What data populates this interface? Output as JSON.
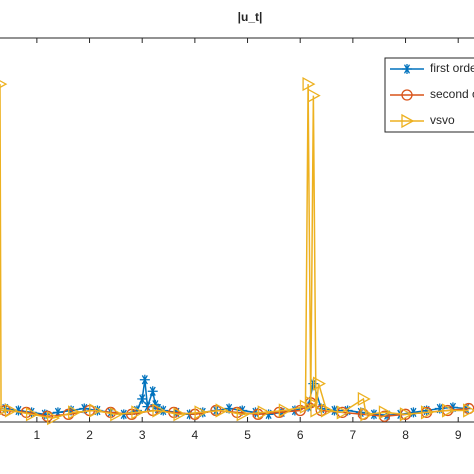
{
  "chart_data": {
    "type": "line",
    "title": "|u_t|",
    "xlim": [
      0.3,
      9.3
    ],
    "ylim": [
      0,
      1
    ],
    "xticks": [
      1,
      2,
      3,
      4,
      5,
      6,
      7,
      8,
      9
    ],
    "legend": "top-right",
    "series": [
      {
        "name": "first orde",
        "color": "#0072bd",
        "marker": "asterisk",
        "x": [
          0.4,
          0.65,
          0.9,
          1.15,
          1.4,
          1.65,
          1.9,
          2.15,
          2.4,
          2.65,
          2.9,
          3.0,
          3.05,
          3.1,
          3.2,
          3.25,
          3.3,
          3.4,
          3.65,
          3.9,
          4.15,
          4.4,
          4.65,
          4.9,
          5.15,
          5.4,
          5.65,
          5.9,
          6.15,
          6.25,
          6.4,
          6.65,
          6.9,
          7.15,
          7.4,
          7.65,
          7.9,
          8.15,
          8.4,
          8.65,
          8.9,
          9.15
        ],
        "values": [
          0.035,
          0.03,
          0.025,
          0.02,
          0.025,
          0.03,
          0.035,
          0.03,
          0.025,
          0.02,
          0.03,
          0.06,
          0.11,
          0.04,
          0.08,
          0.045,
          0.035,
          0.03,
          0.025,
          0.02,
          0.025,
          0.03,
          0.035,
          0.03,
          0.025,
          0.02,
          0.025,
          0.03,
          0.04,
          0.1,
          0.035,
          0.03,
          0.03,
          0.025,
          0.02,
          0.018,
          0.02,
          0.025,
          0.03,
          0.035,
          0.038,
          0.035
        ]
      },
      {
        "name": "second o",
        "color": "#d95319",
        "marker": "circle",
        "x": [
          0.4,
          0.8,
          1.2,
          1.6,
          2.0,
          2.4,
          2.8,
          3.2,
          3.6,
          4.0,
          4.4,
          4.8,
          5.2,
          5.6,
          6.0,
          6.2,
          6.4,
          6.8,
          7.2,
          7.6,
          8.0,
          8.4,
          8.8,
          9.2
        ],
        "values": [
          0.03,
          0.025,
          0.015,
          0.02,
          0.03,
          0.025,
          0.02,
          0.03,
          0.025,
          0.02,
          0.03,
          0.025,
          0.02,
          0.025,
          0.03,
          0.05,
          0.03,
          0.025,
          0.02,
          0.015,
          0.02,
          0.025,
          0.03,
          0.035
        ]
      },
      {
        "name": "vsvo",
        "color": "#edb120",
        "marker": "triangle-right",
        "x": [
          0.3,
          0.32,
          0.5,
          0.9,
          1.3,
          1.7,
          2.1,
          2.5,
          2.9,
          3.3,
          3.7,
          4.1,
          4.5,
          4.9,
          5.3,
          5.7,
          6.1,
          6.15,
          6.2,
          6.25,
          6.3,
          6.35,
          6.5,
          6.8,
          7.2,
          7.25,
          7.6,
          8.0,
          8.4,
          8.8,
          9.2
        ],
        "values": [
          0.88,
          0.03,
          0.03,
          0.02,
          0.01,
          0.025,
          0.03,
          0.02,
          0.025,
          0.03,
          0.02,
          0.025,
          0.03,
          0.02,
          0.025,
          0.03,
          0.04,
          0.88,
          0.05,
          0.85,
          0.03,
          0.1,
          0.03,
          0.025,
          0.06,
          0.02,
          0.025,
          0.02,
          0.025,
          0.03,
          0.03
        ]
      }
    ]
  }
}
